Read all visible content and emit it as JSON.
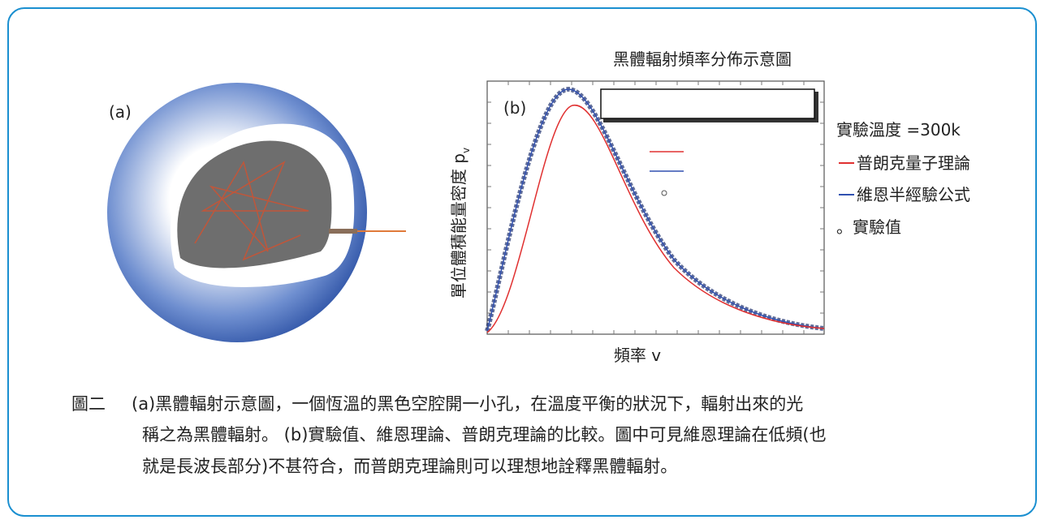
{
  "panel_a": {
    "label": "(a)"
  },
  "panel_b": {
    "label": "(b)",
    "title": "黑體輻射頻率分佈示意圖",
    "y_label": "單位體積能量密度 p",
    "y_label_sub": "v",
    "x_label": "頻率 v",
    "legend": [
      "實驗溫度 =300k",
      "普朗克量子理論",
      "維恩半經驗公式",
      "。實驗值"
    ]
  },
  "caption": {
    "label": "圖二",
    "lines": [
      "(a)黑體輻射示意圖，一個恆溫的黑色空腔開一小孔，在溫度平衡的狀況下，輻射出來的光",
      "稱之為黑體輻射。 (b)實驗值、維恩理論、普朗克理論的比較。圖中可見維恩理論在低頻(也",
      "就是長波長部分)不甚符合，而普朗克理論則可以理想地詮釋黑體輻射。"
    ]
  }
}
